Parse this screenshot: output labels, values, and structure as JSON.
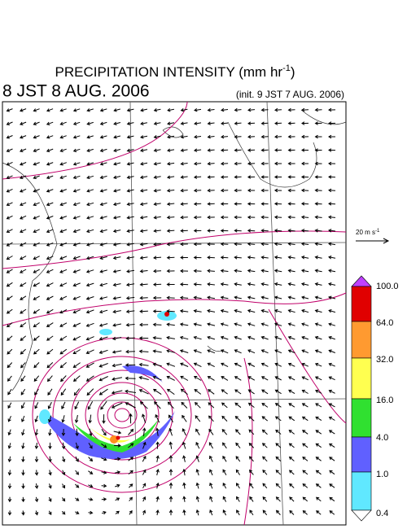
{
  "header": {
    "title": "PRECIPITATION INTENSITY (mm hr",
    "title_exp": "-1",
    "title_end": ")",
    "valid_time": "8 JST 8 AUG. 2006",
    "init_time": "(init. 9 JST 7 AUG. 2006)"
  },
  "wind_scale": {
    "label": "20 m s",
    "exp": "-1"
  },
  "colorbar": {
    "labels": [
      "100.0",
      "64.0",
      "32.0",
      "16.0",
      "4.0",
      "1.0",
      "0.4"
    ]
  }
}
